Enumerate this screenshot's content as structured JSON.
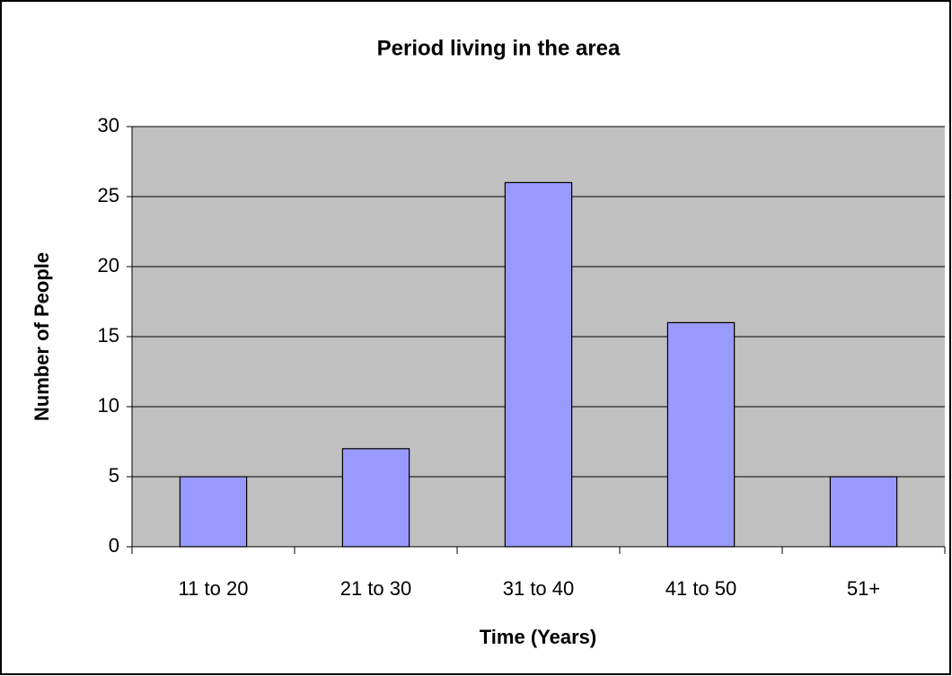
{
  "chart_data": {
    "type": "bar",
    "title": "Period living in the area",
    "x_label": "Time (Years)",
    "y_label": "Number of People",
    "categories": [
      "11 to 20",
      "21 to 30",
      "31 to 40",
      "41 to 50",
      "51+"
    ],
    "values": [
      5,
      7,
      26,
      16,
      5
    ],
    "color": "#9999ff",
    "ylim": [
      0,
      30
    ],
    "yticks": [
      0,
      5,
      10,
      15,
      20,
      25,
      30
    ],
    "grid": true
  }
}
